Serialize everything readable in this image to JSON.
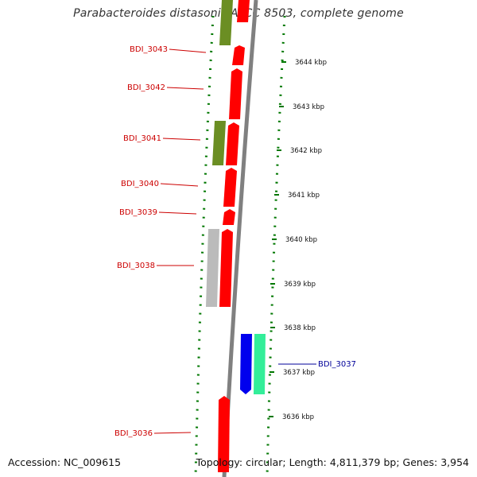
{
  "title": "Parabacteroides distasonis ATCC 8503, complete genome",
  "footer": {
    "accession": "Accession: NC_009615",
    "topology": "Topology: circular; Length: 4,811,379 bp; Genes: 3,954"
  },
  "colors": {
    "reverse_cds": "#ff0000",
    "rna": "#6b8e23",
    "pseudo": "#bbbbbb",
    "forward_blue": "#0000ee",
    "forward_green": "#33ee99",
    "left_label": "#cc0000",
    "right_label": "#000099",
    "backbone": "#808080",
    "tick_marks": "#007700"
  },
  "kbp_ticks": [
    "3644 kbp",
    "3643 kbp",
    "3642 kbp",
    "3641 kbp",
    "3640 kbp",
    "3639 kbp",
    "3638 kbp",
    "3637 kbp",
    "3636 kbp"
  ],
  "gene_labels_left": [
    "BDI_3043",
    "BDI_3042",
    "BDI_3041",
    "BDI_3040",
    "BDI_3039",
    "BDI_3038",
    "BDI_3036"
  ],
  "gene_labels_right": [
    "BDI_3037"
  ]
}
